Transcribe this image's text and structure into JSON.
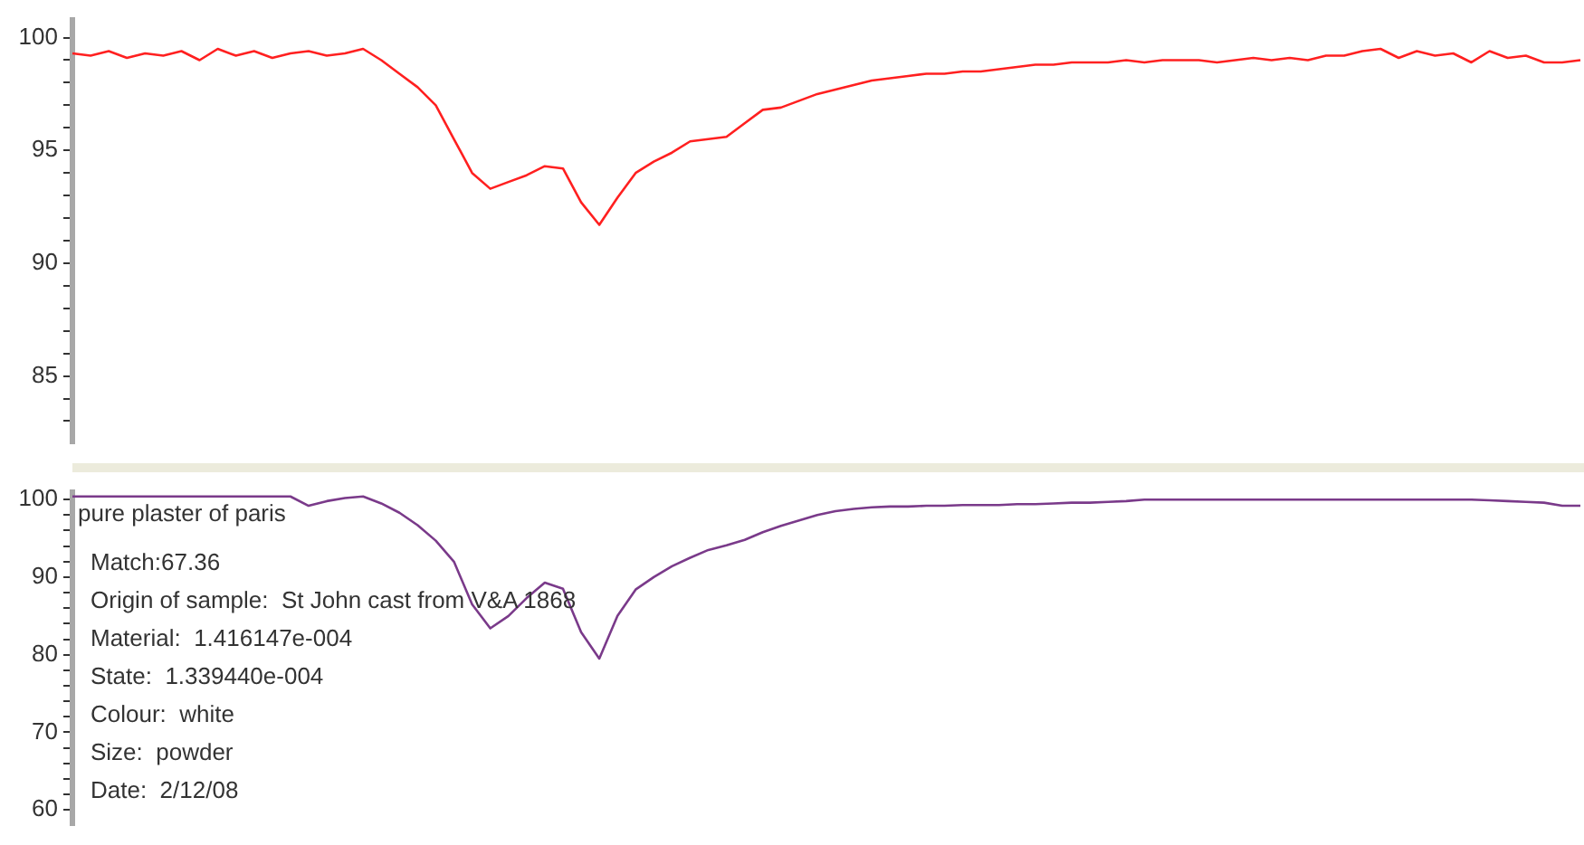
{
  "chart_data": [
    {
      "type": "line",
      "categories": [
        null,
        null,
        null,
        null,
        null,
        null,
        null,
        null,
        null,
        null,
        null,
        null,
        null,
        null,
        null,
        null,
        null,
        null,
        null,
        null,
        null,
        null,
        null,
        null,
        null,
        null,
        null,
        null,
        null,
        null,
        null,
        null,
        null,
        null,
        null,
        null,
        null,
        null,
        null,
        null,
        null,
        null,
        null,
        null,
        null,
        null,
        null,
        null,
        null,
        null,
        null,
        null,
        null,
        null,
        null,
        null,
        null,
        null,
        null,
        null,
        null,
        null,
        null,
        null,
        null,
        null,
        null,
        null,
        null,
        null,
        null,
        null,
        null,
        null,
        null,
        null,
        null,
        null,
        null,
        null,
        null,
        null,
        null,
        null
      ],
      "series": [
        {
          "color": "#ff2020",
          "values": [
            99.3,
            99.2,
            99.4,
            99.1,
            99.3,
            99.2,
            99.4,
            99.0,
            99.5,
            99.2,
            99.4,
            99.1,
            99.3,
            99.4,
            99.2,
            99.3,
            99.5,
            99.0,
            98.4,
            97.8,
            97.0,
            95.5,
            94.0,
            93.3,
            93.6,
            93.9,
            94.3,
            94.2,
            92.7,
            91.7,
            92.9,
            94.0,
            94.5,
            94.9,
            95.4,
            95.5,
            95.6,
            96.2,
            96.8,
            96.9,
            97.2,
            97.5,
            97.7,
            97.9,
            98.1,
            98.2,
            98.3,
            98.4,
            98.4,
            98.5,
            98.5,
            98.6,
            98.7,
            98.8,
            98.8,
            98.9,
            98.9,
            98.9,
            99.0,
            98.9,
            99.0,
            99.0,
            99.0,
            98.9,
            99.0,
            99.1,
            99.0,
            99.1,
            99.0,
            99.2,
            99.2,
            99.4,
            99.5,
            99.1,
            99.4,
            99.2,
            99.3,
            98.9,
            99.4,
            99.1,
            99.2,
            98.9,
            98.9,
            99.0
          ]
        }
      ],
      "ylim": [
        82,
        100.8
      ],
      "yticks": [
        {
          "value": 83,
          "label": null
        },
        {
          "value": 84,
          "label": null
        },
        85,
        {
          "value": 86,
          "label": null
        },
        {
          "value": 87,
          "label": null
        },
        {
          "value": 88,
          "label": null
        },
        {
          "value": 89,
          "label": null
        },
        90,
        {
          "value": 91,
          "label": null
        },
        {
          "value": 92,
          "label": null
        },
        {
          "value": 93,
          "label": null
        },
        {
          "value": 94,
          "label": null
        },
        95,
        {
          "value": 96,
          "label": null
        },
        {
          "value": 97,
          "label": null
        },
        {
          "value": 98,
          "label": null
        },
        {
          "value": 99,
          "label": null
        },
        100
      ],
      "grid": false,
      "legend": false,
      "marker": "none",
      "line_style": "solid",
      "tick_labels": "y"
    },
    {
      "type": "line",
      "categories": [
        null,
        null,
        null,
        null,
        null,
        null,
        null,
        null,
        null,
        null,
        null,
        null,
        null,
        null,
        null,
        null,
        null,
        null,
        null,
        null,
        null,
        null,
        null,
        null,
        null,
        null,
        null,
        null,
        null,
        null,
        null,
        null,
        null,
        null,
        null,
        null,
        null,
        null,
        null,
        null,
        null,
        null,
        null,
        null,
        null,
        null,
        null,
        null,
        null,
        null,
        null,
        null,
        null,
        null,
        null,
        null,
        null,
        null,
        null,
        null,
        null,
        null,
        null,
        null,
        null,
        null,
        null,
        null,
        null,
        null,
        null,
        null,
        null,
        null,
        null,
        null,
        null,
        null,
        null,
        null,
        null,
        null,
        null,
        null
      ],
      "series": [
        {
          "color": "#7a3a8a",
          "values": [
            100.4,
            100.4,
            100.4,
            100.4,
            100.4,
            100.4,
            100.4,
            100.4,
            100.4,
            100.4,
            100.4,
            100.4,
            100.4,
            99.2,
            99.8,
            100.2,
            100.4,
            99.5,
            98.3,
            96.7,
            94.7,
            92.0,
            86.5,
            83.4,
            85.0,
            87.3,
            89.3,
            88.5,
            82.9,
            79.5,
            85.0,
            88.4,
            90.0,
            91.4,
            92.5,
            93.5,
            94.1,
            94.8,
            95.8,
            96.6,
            97.3,
            98.0,
            98.5,
            98.8,
            99.0,
            99.1,
            99.1,
            99.2,
            99.2,
            99.3,
            99.3,
            99.3,
            99.4,
            99.4,
            99.5,
            99.6,
            99.6,
            99.7,
            99.8,
            100.0,
            100.0,
            100.0,
            100.0,
            100.0,
            100.0,
            100.0,
            100.0,
            100.0,
            100.0,
            100.0,
            100.0,
            100.0,
            100.0,
            100.0,
            100.0,
            100.0,
            100.0,
            100.0,
            99.9,
            99.8,
            99.7,
            99.6,
            99.2,
            99.2
          ]
        }
      ],
      "ylim": [
        58,
        101
      ],
      "yticks": [
        60,
        {
          "value": 62,
          "label": null
        },
        {
          "value": 64,
          "label": null
        },
        {
          "value": 66,
          "label": null
        },
        {
          "value": 68,
          "label": null
        },
        70,
        {
          "value": 72,
          "label": null
        },
        {
          "value": 74,
          "label": null
        },
        {
          "value": 76,
          "label": null
        },
        {
          "value": 78,
          "label": null
        },
        80,
        {
          "value": 82,
          "label": null
        },
        {
          "value": 84,
          "label": null
        },
        {
          "value": 86,
          "label": null
        },
        {
          "value": 88,
          "label": null
        },
        90,
        {
          "value": 92,
          "label": null
        },
        {
          "value": 94,
          "label": null
        },
        {
          "value": 96,
          "label": null
        },
        {
          "value": 98,
          "label": null
        },
        100
      ],
      "annotations": [
        "pure plaster of paris",
        "Match:67.36",
        "Origin of sample:  St John cast from V&A 1868",
        "Material:  1.416147e-004",
        "State:  1.339440e-004",
        "Colour:  white",
        "Size:  powder",
        "Date:  2/12/08"
      ],
      "grid": false,
      "legend": false,
      "marker": "none",
      "line_style": "solid",
      "tick_labels": "y"
    }
  ]
}
